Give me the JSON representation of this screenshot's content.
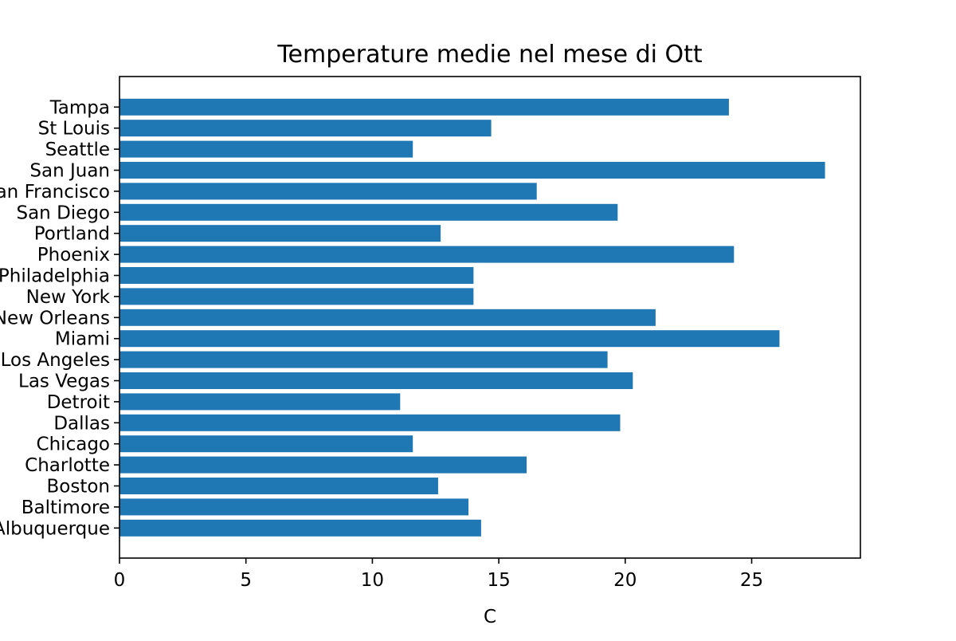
{
  "chart_data": {
    "type": "bar",
    "orientation": "horizontal",
    "title": "Temperature medie nel mese di Ott",
    "xlabel": "C",
    "ylabel": "",
    "xlim": [
      0,
      29.3
    ],
    "xticks": [
      0,
      5,
      10,
      15,
      20,
      25
    ],
    "grid": false,
    "bar_color": "#1f77b4",
    "categories": [
      "Albuquerque",
      "Baltimore",
      "Boston",
      "Charlotte",
      "Chicago",
      "Dallas",
      "Detroit",
      "Las Vegas",
      "Los Angeles",
      "Miami",
      "New Orleans",
      "New York",
      "Philadelphia",
      "Phoenix",
      "Portland",
      "San Diego",
      "San Francisco",
      "San Juan",
      "Seattle",
      "St Louis",
      "Tampa"
    ],
    "values": [
      14.3,
      13.8,
      12.6,
      16.1,
      11.6,
      19.8,
      11.1,
      20.3,
      19.3,
      26.1,
      21.2,
      14.0,
      14.0,
      24.3,
      12.7,
      19.7,
      16.5,
      27.9,
      11.6,
      14.7,
      24.1
    ]
  }
}
